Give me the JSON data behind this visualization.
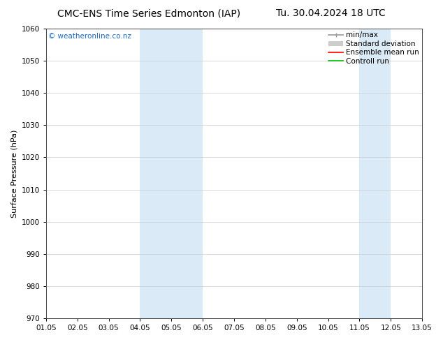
{
  "title_left": "CMC-ENS Time Series Edmonton (IAP)",
  "title_right": "Tu. 30.04.2024 18 UTC",
  "ylabel": "Surface Pressure (hPa)",
  "ylim": [
    970,
    1060
  ],
  "yticks": [
    970,
    980,
    990,
    1000,
    1010,
    1020,
    1030,
    1040,
    1050,
    1060
  ],
  "xlabels": [
    "01.05",
    "02.05",
    "03.05",
    "04.05",
    "05.05",
    "06.05",
    "07.05",
    "08.05",
    "09.05",
    "10.05",
    "11.05",
    "12.05",
    "13.05"
  ],
  "x_positions": [
    0,
    1,
    2,
    3,
    4,
    5,
    6,
    7,
    8,
    9,
    10,
    11,
    12
  ],
  "xlim": [
    0,
    12
  ],
  "shaded_bands": [
    {
      "x_start": 3,
      "x_end": 5,
      "color": "#daeaf7"
    },
    {
      "x_start": 10,
      "x_end": 11,
      "color": "#daeaf7"
    }
  ],
  "watermark": "© weatheronline.co.nz",
  "watermark_color": "#1a6bc9",
  "legend_items": [
    {
      "label": "min/max",
      "color": "#999999",
      "lw": 1.2,
      "type": "line_with_cap"
    },
    {
      "label": "Standard deviation",
      "color": "#cccccc",
      "lw": 7,
      "type": "thick_line"
    },
    {
      "label": "Ensemble mean run",
      "color": "#ff0000",
      "lw": 1.2,
      "type": "line"
    },
    {
      "label": "Controll run",
      "color": "#00bb00",
      "lw": 1.2,
      "type": "line"
    }
  ],
  "background_color": "#ffffff",
  "grid_color": "#cccccc",
  "title_fontsize": 10,
  "ylabel_fontsize": 8,
  "tick_fontsize": 7.5,
  "watermark_fontsize": 7.5,
  "legend_fontsize": 7.5
}
